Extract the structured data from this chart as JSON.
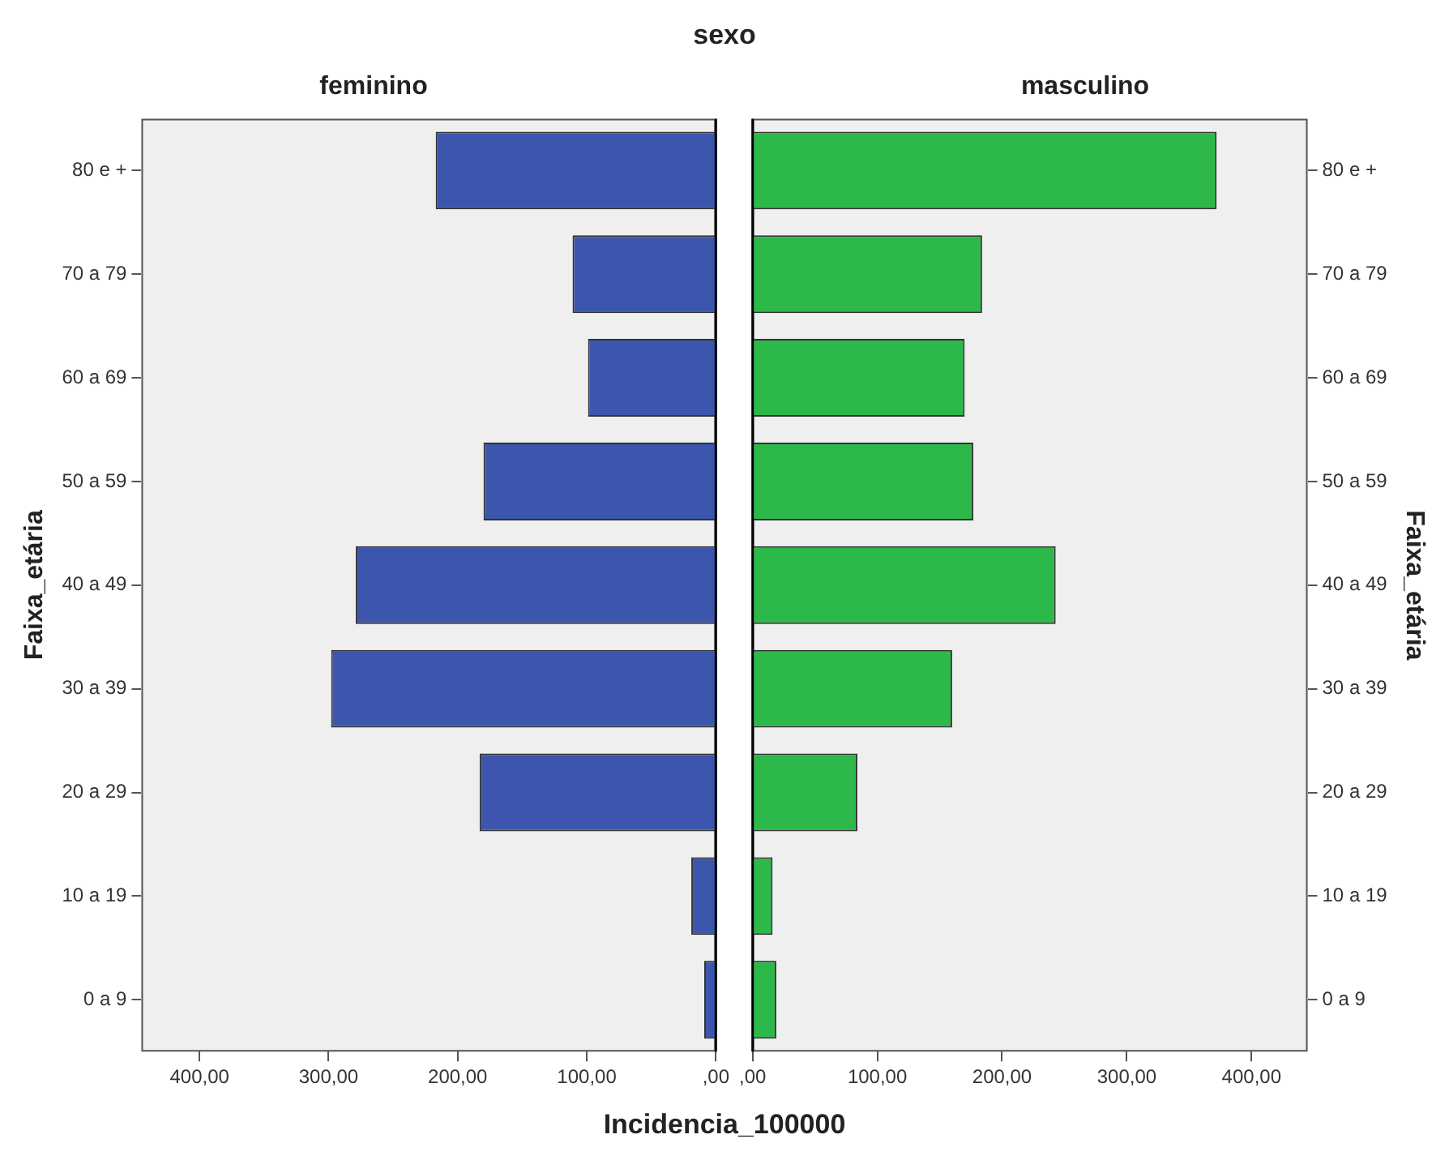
{
  "chart_data": [
    {
      "type": "bar",
      "orientation": "horizontal",
      "title": "sexo",
      "subtitle": "feminino",
      "xlabel": "Incidencia_100000",
      "ylabel": "Faixa_etária",
      "categories": [
        "80 e +",
        "70 a 79",
        "60 a 69",
        "50 a 59",
        "40 a 49",
        "30 a 39",
        "20 a 29",
        "10 a 19",
        "0 a 9"
      ],
      "values": [
        217,
        111,
        99,
        180,
        279,
        298,
        183,
        19,
        9
      ],
      "color": "#3c56ad",
      "xlim": [
        445,
        0
      ],
      "xticks": [
        {
          "value": 400,
          "label": "400,00"
        },
        {
          "value": 300,
          "label": "300,00"
        },
        {
          "value": 200,
          "label": "200,00"
        },
        {
          "value": 100,
          "label": "100,00"
        },
        {
          "value": 0,
          "label": ",00"
        }
      ]
    },
    {
      "type": "bar",
      "orientation": "horizontal",
      "subtitle": "masculino",
      "ylabel": "Faixa_etária",
      "categories": [
        "80 e +",
        "70 a 79",
        "60 a 69",
        "50 a 59",
        "40 a 49",
        "30 a 39",
        "20 a 29",
        "10 a 19",
        "0 a 9"
      ],
      "values": [
        372,
        184,
        170,
        177,
        243,
        160,
        84,
        16,
        19
      ],
      "color": "#2db84a",
      "xlim": [
        0,
        445
      ],
      "xticks": [
        {
          "value": 0,
          "label": ",00"
        },
        {
          "value": 100,
          "label": "100,00"
        },
        {
          "value": 200,
          "label": "200,00"
        },
        {
          "value": 300,
          "label": "300,00"
        },
        {
          "value": 400,
          "label": "400,00"
        }
      ]
    }
  ]
}
